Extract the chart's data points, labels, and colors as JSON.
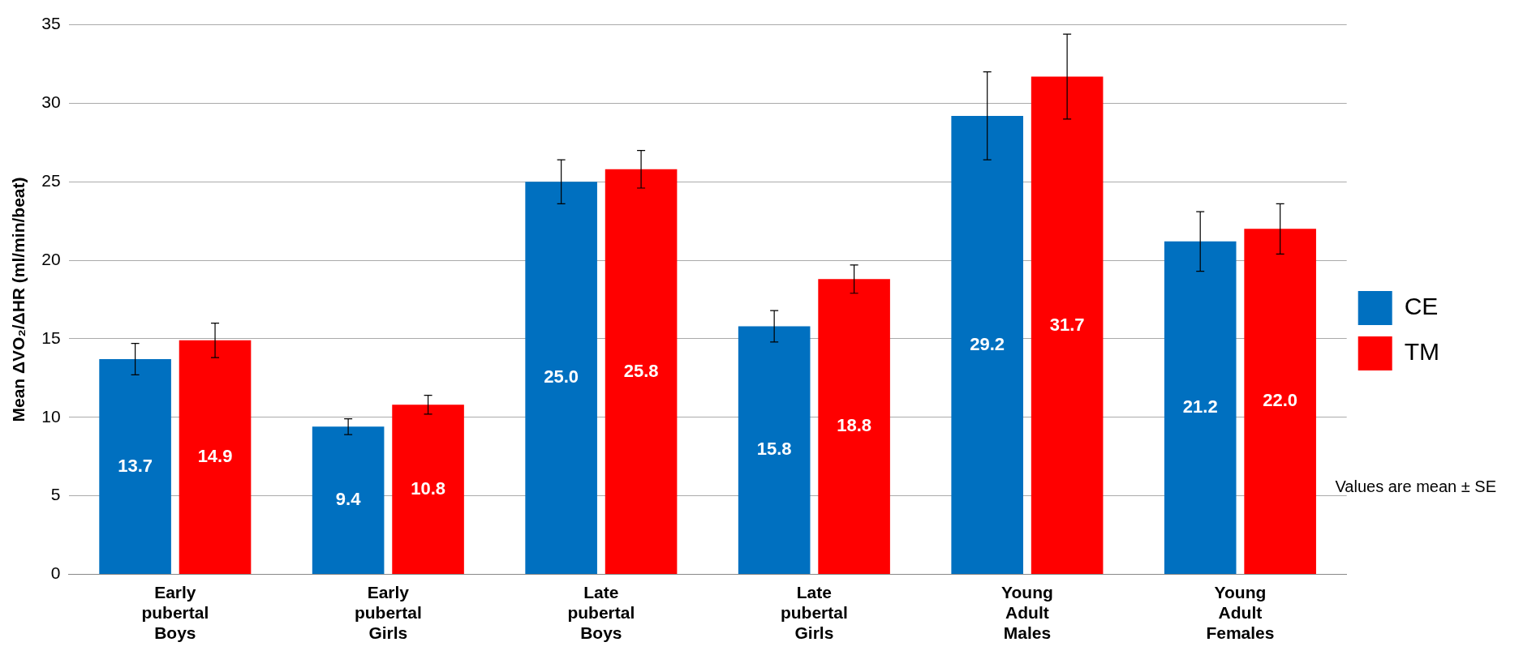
{
  "chart_data": {
    "type": "bar",
    "ylabel": "Mean ΔVO₂/ΔHR (ml/min/beat)",
    "categories": [
      "Early pubertal Boys",
      "Early pubertal Girls",
      "Late pubertal Boys",
      "Late pubertal Girls",
      "Young Adult Males",
      "Young Adult Females"
    ],
    "series": [
      {
        "name": "CE",
        "color": "#0070c0",
        "values": [
          13.7,
          9.4,
          25.0,
          15.8,
          29.2,
          21.2
        ],
        "value_labels": [
          "13.7",
          "9.4",
          "25.0",
          "15.8",
          "29.2",
          "21.2"
        ],
        "errors": [
          1.0,
          0.5,
          1.4,
          1.0,
          2.8,
          1.9
        ]
      },
      {
        "name": "TM",
        "color": "#ff0000",
        "values": [
          14.9,
          10.8,
          25.8,
          18.8,
          31.7,
          22.0
        ],
        "value_labels": [
          "14.9",
          "10.8",
          "25.8",
          "18.8",
          "31.7",
          "22.0"
        ],
        "errors": [
          1.1,
          0.6,
          1.2,
          0.9,
          2.7,
          1.6
        ]
      }
    ],
    "ylim": [
      0,
      35
    ],
    "yticks": [
      0,
      5,
      10,
      15,
      20,
      25,
      30,
      35
    ],
    "grid": "y",
    "legend": "right",
    "annotations": [
      "Values are mean ± SE"
    ]
  }
}
